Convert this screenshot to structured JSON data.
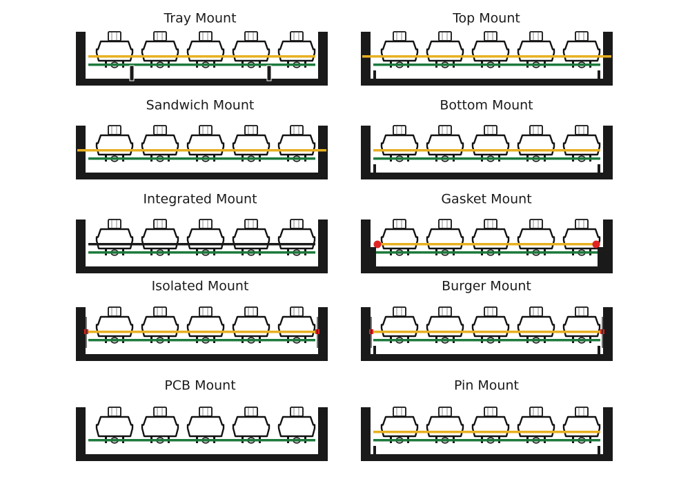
{
  "colors": {
    "case": "#1a1a1a",
    "plate": "#e8b021",
    "pcb": "#1d7a3c",
    "gasket": "#e02424",
    "switch_fill": "#ffffff",
    "switch_outline": "#111111",
    "stem": "#9a9a9a"
  },
  "diagram": {
    "panels": [
      {
        "key": "tray",
        "title": "Tray Mount",
        "style": "tray"
      },
      {
        "key": "top",
        "title": "Top Mount",
        "style": "top"
      },
      {
        "key": "sandwich",
        "title": "Sandwich Mount",
        "style": "sandwich"
      },
      {
        "key": "bottom",
        "title": "Bottom Mount",
        "style": "bottom"
      },
      {
        "key": "integrated",
        "title": "Integrated Mount",
        "style": "integrated"
      },
      {
        "key": "gasket",
        "title": "Gasket Mount",
        "style": "gasket"
      },
      {
        "key": "isolated",
        "title": "Isolated Mount",
        "style": "isolated"
      },
      {
        "key": "burger",
        "title": "Burger Mount",
        "style": "burger"
      },
      {
        "key": "pcb",
        "title": "PCB Mount",
        "style": "pcb"
      },
      {
        "key": "pin",
        "title": "Pin Mount",
        "style": "pin"
      }
    ]
  }
}
